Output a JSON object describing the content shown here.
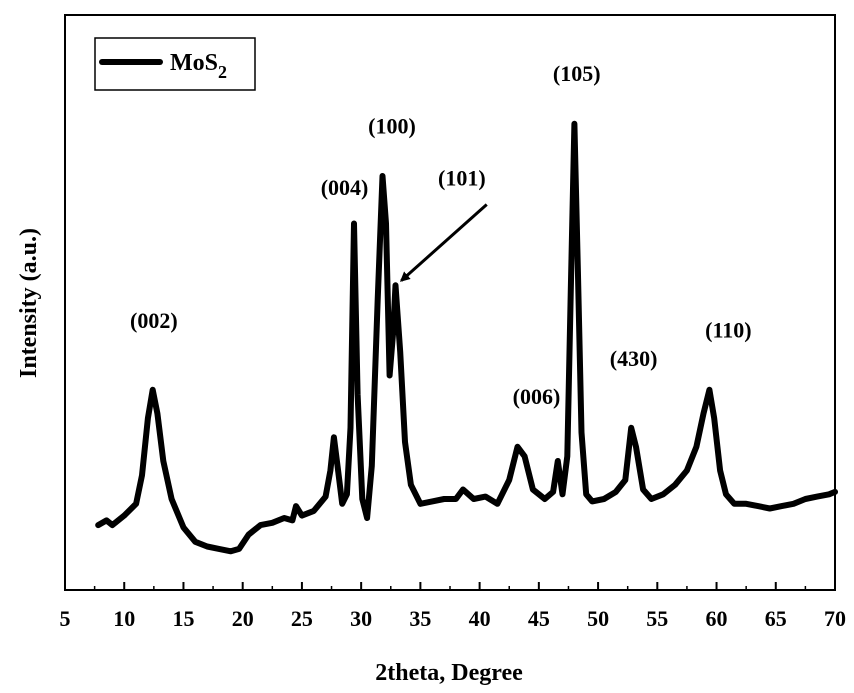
{
  "chart_data": {
    "type": "line",
    "xlabel": "2theta, Degree",
    "ylabel": "Intensity (a.u.)",
    "xlim": [
      5,
      70
    ],
    "ylim": [
      0,
      100
    ],
    "x_ticks": [
      5,
      10,
      15,
      20,
      25,
      30,
      35,
      40,
      45,
      50,
      55,
      60,
      65,
      70
    ],
    "y_ticks_shown": false,
    "grid": false,
    "legend": {
      "position": "top-left",
      "entries": [
        {
          "label": "MoS",
          "subscript": "2"
        }
      ]
    },
    "series": [
      {
        "name": "MoS2",
        "color": "#000000",
        "x": [
          7.8,
          8.5,
          9,
          10,
          11,
          11.5,
          12,
          12.4,
          12.8,
          13.3,
          14,
          15,
          16,
          17,
          18,
          19,
          19.7,
          20.5,
          21.5,
          22.5,
          23.5,
          24.2,
          24.5,
          25,
          26,
          27,
          27.4,
          27.7,
          28,
          28.4,
          28.8,
          29.1,
          29.4,
          29.7,
          30.1,
          30.5,
          30.9,
          31.4,
          31.8,
          32.1,
          32.4,
          32.7,
          32.9,
          33.3,
          33.7,
          34.2,
          35,
          36,
          37,
          38,
          38.6,
          39.5,
          40.5,
          41.5,
          42.5,
          43.2,
          43.8,
          44.5,
          45.5,
          46.2,
          46.6,
          47,
          47.4,
          47.7,
          48,
          48.3,
          48.6,
          49,
          49.5,
          50.5,
          51.5,
          52.3,
          52.8,
          53.2,
          53.8,
          54.5,
          55.5,
          56.5,
          57.5,
          58.3,
          58.9,
          59.4,
          59.8,
          60.3,
          60.8,
          61.5,
          62.5,
          63.5,
          64.5,
          65.5,
          66.5,
          67.5,
          68.5,
          69.5,
          70
        ],
        "values": [
          10.5,
          11.5,
          10.5,
          12.5,
          15,
          21,
          33,
          39,
          34,
          24,
          16,
          10,
          7,
          6,
          5.5,
          5,
          5.5,
          8.5,
          10.5,
          11,
          12,
          11.5,
          14.5,
          12.5,
          13.5,
          16.5,
          22,
          29,
          23,
          15,
          17,
          31,
          74,
          38,
          16,
          12,
          23,
          58,
          84,
          74,
          42,
          51,
          61,
          47,
          28,
          19,
          15,
          15.5,
          16,
          16,
          18,
          16,
          16.5,
          15,
          20,
          27,
          25,
          18,
          16,
          17.5,
          24,
          17,
          25,
          60,
          95,
          64,
          30,
          17,
          15.5,
          16,
          17.5,
          20,
          31,
          27,
          18,
          16,
          17,
          19,
          22,
          27,
          34,
          39,
          33,
          22,
          17,
          15,
          15,
          14.5,
          14,
          14.5,
          15,
          16,
          16.5,
          17,
          17.5
        ]
      }
    ],
    "annotations": [
      {
        "text": "(002)",
        "x": 12.5,
        "y": 52
      },
      {
        "text": "(004)",
        "x": 28.6,
        "y": 80
      },
      {
        "text": "(100)",
        "x": 32.6,
        "y": 93
      },
      {
        "text": "(101)",
        "x": 38.5,
        "y": 82
      },
      {
        "text": "(006)",
        "x": 44.8,
        "y": 36
      },
      {
        "text": "(105)",
        "x": 48.2,
        "y": 104
      },
      {
        "text": "(430)",
        "x": 53.0,
        "y": 44
      },
      {
        "text": "(110)",
        "x": 61.0,
        "y": 50
      }
    ],
    "arrow": {
      "from": [
        40.6,
        78
      ],
      "to": [
        33.4,
        62
      ]
    }
  }
}
